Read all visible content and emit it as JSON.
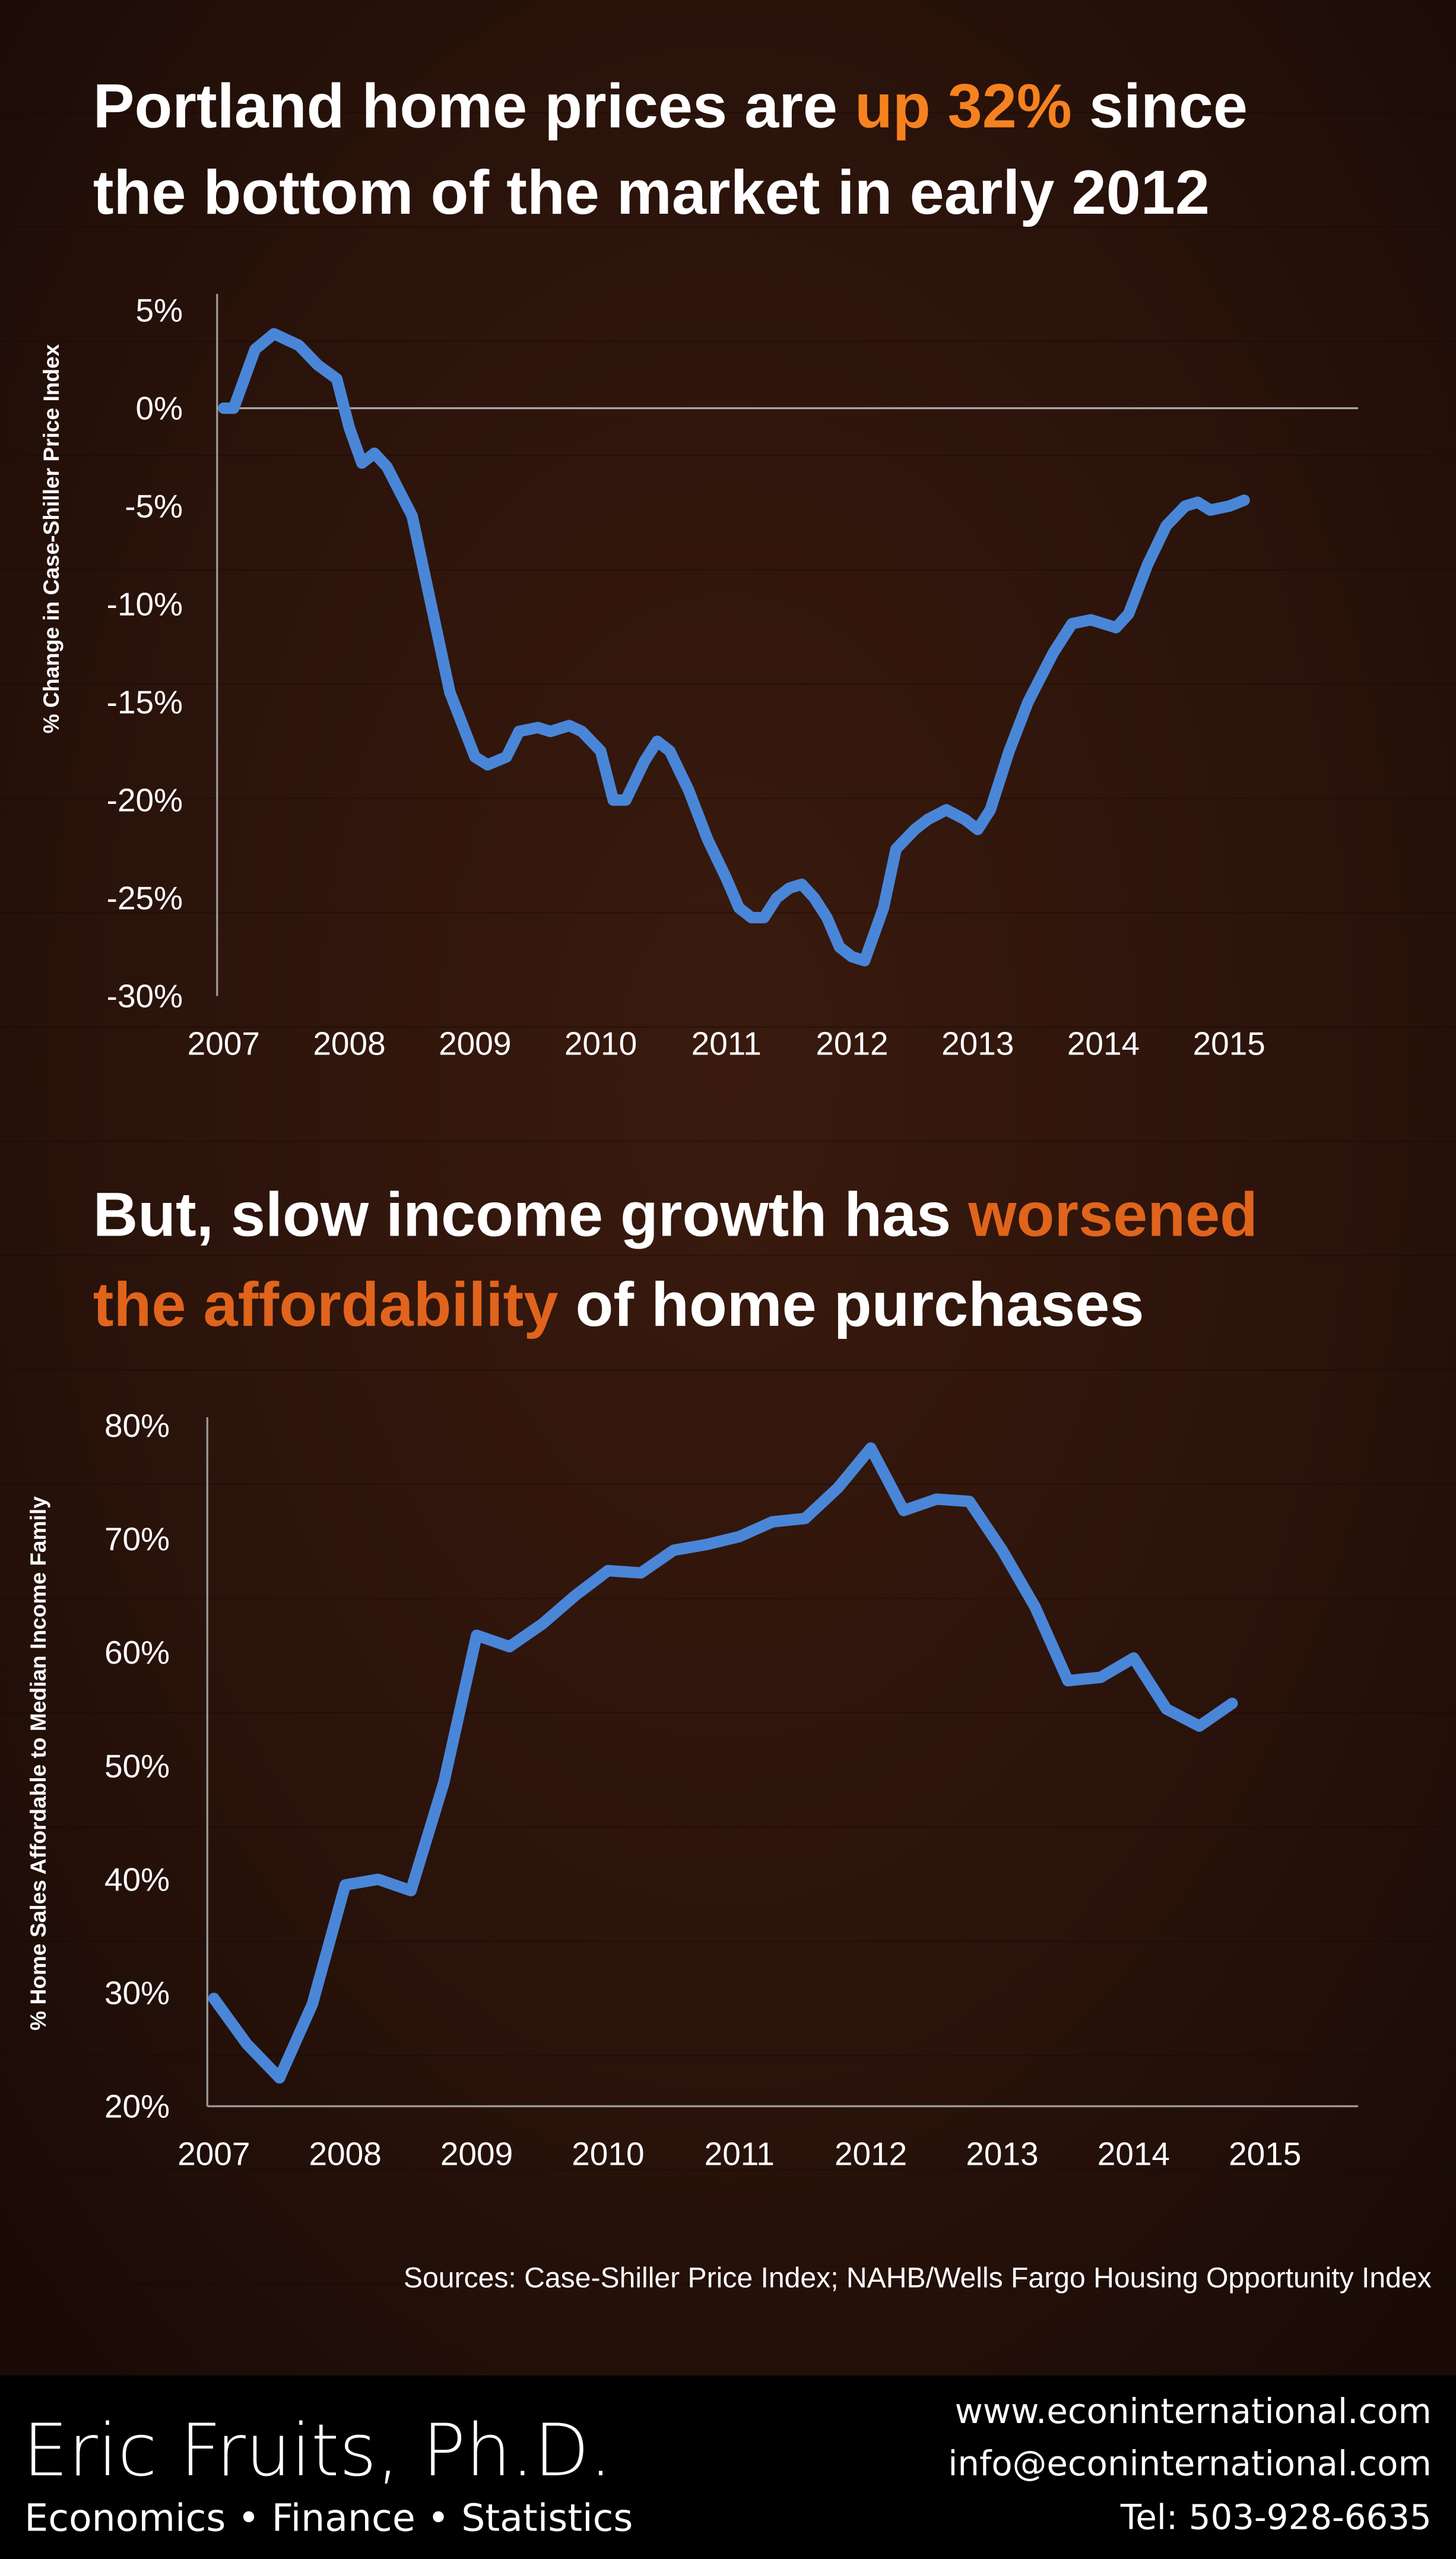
{
  "colors": {
    "background": "#2a130b",
    "line": "#4a86d8",
    "highlight1": "#f5821f",
    "highlight2": "#e0641c",
    "footer": "#000000"
  },
  "headline1": {
    "part1": "Portland home prices are ",
    "highlight": "up 32%",
    "part2": " since",
    "line2": "the bottom of the market in early 2012"
  },
  "headline2": {
    "part1": "But, slow income growth has ",
    "highlight_a": "worsened",
    "highlight_b": "the affordability",
    "part2": " of home purchases"
  },
  "chart_data": [
    {
      "type": "line",
      "title": "Portland home prices are up 32% since the bottom of the market in early 2012",
      "xlabel": "",
      "ylabel": "% Change in Case-Shiller Price Index",
      "xlim": [
        2007,
        2015.3
      ],
      "ylim": [
        -30,
        5
      ],
      "x_ticks": [
        "2007",
        "2008",
        "2009",
        "2010",
        "2011",
        "2012",
        "2013",
        "2014",
        "2015"
      ],
      "y_ticks": [
        "5%",
        "0%",
        "-5%",
        "-10%",
        "-15%",
        "-20%",
        "-25%",
        "-30%"
      ],
      "y_tick_values": [
        5,
        0,
        -5,
        -10,
        -15,
        -20,
        -25,
        -30
      ],
      "series": [
        {
          "name": "Case-Shiller Portland",
          "x": [
            2007.0,
            2007.08,
            2007.25,
            2007.4,
            2007.5,
            2007.6,
            2007.75,
            2007.9,
            2008.0,
            2008.1,
            2008.2,
            2008.3,
            2008.5,
            2008.65,
            2008.8,
            2009.0,
            2009.1,
            2009.25,
            2009.35,
            2009.5,
            2009.6,
            2009.75,
            2009.85,
            2010.0,
            2010.1,
            2010.2,
            2010.35,
            2010.45,
            2010.55,
            2010.7,
            2010.85,
            2011.0,
            2011.1,
            2011.2,
            2011.3,
            2011.4,
            2011.5,
            2011.6,
            2011.7,
            2011.8,
            2011.9,
            2012.0,
            2012.1,
            2012.25,
            2012.35,
            2012.5,
            2012.6,
            2012.75,
            2012.9,
            2013.0,
            2013.1,
            2013.25,
            2013.4,
            2013.6,
            2013.75,
            2013.9,
            2014.0,
            2014.1,
            2014.2,
            2014.35,
            2014.5,
            2014.65,
            2014.75,
            2014.85,
            2015.0,
            2015.12
          ],
          "values": [
            0,
            0,
            3,
            3.8,
            3.5,
            3.2,
            2.2,
            1.5,
            -1,
            -2.8,
            -2.3,
            -3,
            -5.5,
            -10,
            -14.5,
            -17.8,
            -18.2,
            -17.8,
            -16.5,
            -16.3,
            -16.5,
            -16.2,
            -16.5,
            -17.5,
            -20,
            -20,
            -18,
            -17,
            -17.5,
            -19.5,
            -22,
            -24,
            -25.5,
            -26,
            -26,
            -25,
            -24.5,
            -24.3,
            -25,
            -26,
            -27.5,
            -28,
            -28.2,
            -25.5,
            -22.5,
            -21.5,
            -21,
            -20.5,
            -21,
            -21.5,
            -20.5,
            -17.5,
            -15,
            -12.5,
            -11,
            -10.8,
            -11,
            -11.2,
            -10.5,
            -8,
            -6,
            -5,
            -4.8,
            -5.2,
            -5,
            -4.7
          ]
        }
      ],
      "reference_line": 0,
      "grid": false
    },
    {
      "type": "line",
      "title": "But, slow income growth has worsened the affordability of home purchases",
      "xlabel": "",
      "ylabel": "% Home Sales Affordable to Median Income Family",
      "xlim": [
        2007,
        2015.3
      ],
      "ylim": [
        20,
        80
      ],
      "x_ticks": [
        "2007",
        "2008",
        "2009",
        "2010",
        "2011",
        "2012",
        "2013",
        "2014",
        "2015"
      ],
      "y_ticks": [
        "80%",
        "70%",
        "60%",
        "50%",
        "40%",
        "30%",
        "20%"
      ],
      "y_tick_values": [
        80,
        70,
        60,
        50,
        40,
        30,
        20
      ],
      "series": [
        {
          "name": "NAHB/Wells Fargo HOI",
          "x": [
            2007.0,
            2007.25,
            2007.5,
            2007.75,
            2008.0,
            2008.25,
            2008.5,
            2008.75,
            2009.0,
            2009.25,
            2009.5,
            2009.75,
            2010.0,
            2010.25,
            2010.5,
            2010.75,
            2011.0,
            2011.25,
            2011.5,
            2011.75,
            2012.0,
            2012.25,
            2012.5,
            2012.75,
            2013.0,
            2013.25,
            2013.5,
            2013.75,
            2014.0,
            2014.25,
            2014.5,
            2014.75
          ],
          "values": [
            29.5,
            25.5,
            22.5,
            29,
            39.5,
            40,
            39,
            48.5,
            61.5,
            60.5,
            62.5,
            65,
            67.2,
            67,
            69,
            69.5,
            70.2,
            71.5,
            71.8,
            74.5,
            78,
            72.5,
            73.5,
            73.3,
            69,
            64,
            57.5,
            57.8,
            59.5,
            55,
            53.5,
            55.5
          ]
        }
      ],
      "grid": false
    }
  ],
  "sources": "Sources: Case-Shiller Price Index; NAHB/Wells Fargo Housing Opportunity Index",
  "footer": {
    "name": "Eric Fruits, Ph.D.",
    "tagline": "Economics • Finance • Statistics",
    "website": "www.econinternational.com",
    "email": "info@econinternational.com",
    "phone": "Tel: 503-928-6635"
  }
}
